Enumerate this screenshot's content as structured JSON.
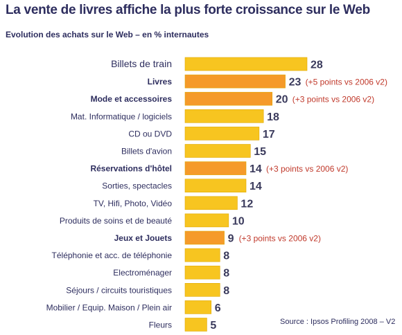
{
  "title": "La vente de livres affiche la plus forte croissance sur le Web",
  "subtitle": "Evolution des achats sur le Web – en % internautes",
  "source": "Source : Ipsos Profiling 2008 – V2",
  "colors": {
    "bar": "#f7c520",
    "highlight_bar": "#f59a2a",
    "value_text": "#3a3a5c",
    "note_text": "#c0392b",
    "label_text": "#2d2d5e"
  },
  "chart_data": {
    "type": "bar",
    "orientation": "horizontal",
    "title": "La vente de livres affiche la plus forte croissance sur le Web",
    "subtitle": "Evolution des achats sur le Web – en % internautes",
    "categories": [
      "Billets de train",
      "Livres",
      "Mode et accessoires",
      "Mat. Informatique / logiciels",
      "CD ou DVD",
      "Billets d'avion",
      "Réservations d'hôtel",
      "Sorties, spectacles",
      "TV, Hifi, Photo, Vidéo",
      "Produits de soins et de beauté",
      "Jeux et Jouets",
      "Téléphonie et acc. de téléphonie",
      "Electroménager",
      "Séjours / circuits touristiques",
      "Mobilier / Equip. Maison / Plein air",
      "Fleurs"
    ],
    "values": [
      28,
      23,
      20,
      18,
      17,
      15,
      14,
      14,
      12,
      10,
      9,
      8,
      8,
      8,
      6,
      5
    ],
    "highlighted": [
      false,
      true,
      true,
      false,
      false,
      false,
      true,
      false,
      false,
      false,
      true,
      false,
      false,
      false,
      false,
      false
    ],
    "annotations": [
      "",
      "(+5 points vs 2006 v2)",
      "(+3 points vs 2006 v2)",
      "",
      "",
      "",
      "(+3 points vs 2006 v2)",
      "",
      "",
      "",
      "(+3 points vs 2006 v2)",
      "",
      "",
      "",
      "",
      ""
    ],
    "xlim": [
      0,
      28
    ],
    "grid": false,
    "legend": "none"
  }
}
